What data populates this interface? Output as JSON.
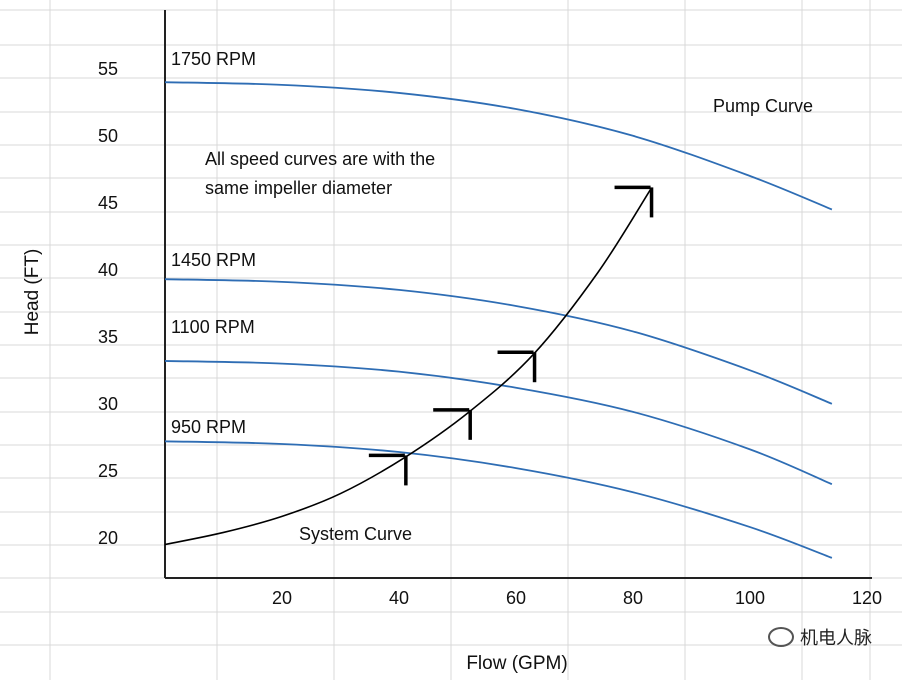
{
  "chart_data": {
    "type": "line",
    "title": "",
    "xlabel": "Flow (GPM)",
    "ylabel": "Head (FT)",
    "xlim": [
      0,
      120
    ],
    "ylim": [
      17,
      60
    ],
    "x_ticks": [
      20,
      40,
      60,
      80,
      100,
      120
    ],
    "y_ticks": [
      20,
      25,
      30,
      35,
      40,
      45,
      50,
      55
    ],
    "grid": true,
    "series": [
      {
        "name": "1750 RPM",
        "color": "#2e6db4",
        "x": [
          0,
          20,
          40,
          60,
          80,
          100,
          114
        ],
        "y": [
          54,
          53.8,
          53.2,
          52,
          50,
          47,
          44.5
        ]
      },
      {
        "name": "1450 RPM",
        "color": "#2e6db4",
        "x": [
          0,
          20,
          40,
          60,
          80,
          100,
          114
        ],
        "y": [
          39.3,
          39.1,
          38.5,
          37.3,
          35.4,
          32.5,
          30
        ]
      },
      {
        "name": "1100 RPM",
        "color": "#2e6db4",
        "x": [
          0,
          20,
          40,
          60,
          80,
          100,
          114
        ],
        "y": [
          33.2,
          33,
          32.4,
          31.2,
          29.4,
          26.6,
          24
        ]
      },
      {
        "name": "950 RPM",
        "color": "#2e6db4",
        "x": [
          0,
          20,
          40,
          60,
          80,
          100,
          114
        ],
        "y": [
          27.2,
          27,
          26.4,
          25.2,
          23.4,
          20.8,
          18.5
        ]
      },
      {
        "name": "System Curve",
        "color": "#000000",
        "x": [
          0,
          10,
          20,
          30,
          41,
          52,
          63,
          74,
          83
        ],
        "y": [
          19.5,
          20.4,
          21.6,
          23.3,
          26,
          29.4,
          33.7,
          39.8,
          46
        ]
      }
    ],
    "operating_points": [
      {
        "x": 41,
        "y": 26
      },
      {
        "x": 52,
        "y": 29.4
      },
      {
        "x": 63,
        "y": 33.7
      },
      {
        "x": 83,
        "y": 46
      }
    ],
    "annotations": {
      "pump_curve": "Pump Curve",
      "note_line1": "All speed curves are with the",
      "note_line2": "same impeller diameter",
      "system_curve": "System Curve"
    }
  },
  "watermark": "机电人脉"
}
